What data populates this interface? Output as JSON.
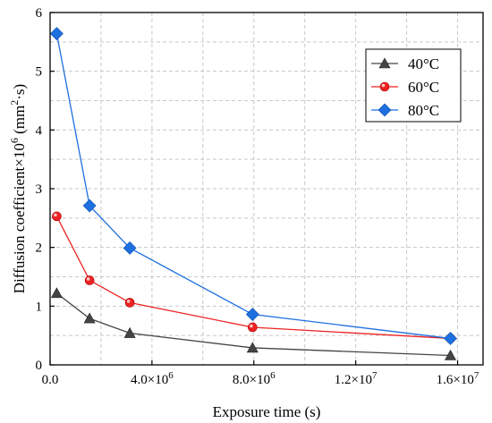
{
  "chart_data": {
    "type": "line",
    "xlabel": "Exposure time (s)",
    "ylabel": "Diffusion coefficient×10^6 (mm^2·s)",
    "xlim": [
      0,
      17000000
    ],
    "ylim": [
      0,
      6
    ],
    "x_ticks": [
      {
        "value": 0,
        "label": "0.0"
      },
      {
        "value": 4000000,
        "mantissa": "4.0×10",
        "exp": "6"
      },
      {
        "value": 8000000,
        "mantissa": "8.0×10",
        "exp": "6"
      },
      {
        "value": 12000000,
        "mantissa": "1.2×10",
        "exp": "7"
      },
      {
        "value": 16000000,
        "mantissa": "1.6×10",
        "exp": "7"
      }
    ],
    "y_ticks": [
      0,
      1,
      2,
      3,
      4,
      5,
      6
    ],
    "grid": true,
    "legend_position": "top-right",
    "x": [
      260000,
      1550000,
      3130000,
      7950000,
      15720000
    ],
    "series": [
      {
        "name": "40°C",
        "color": "#444444",
        "marker": "triangle",
        "values": [
          1.22,
          0.79,
          0.54,
          0.29,
          0.16
        ]
      },
      {
        "name": "60°C",
        "color": "#ee2222",
        "marker": "circle",
        "values": [
          2.53,
          1.44,
          1.06,
          0.64,
          0.45
        ]
      },
      {
        "name": "80°C",
        "color": "#1e6fe0",
        "marker": "diamond",
        "values": [
          5.64,
          2.71,
          1.99,
          0.86,
          0.45
        ]
      }
    ]
  },
  "ylabel_parts": {
    "main": "Diffusion coefficient×10",
    "sup1": "6",
    "mid": " (mm",
    "sup2": "2",
    "end": "·s)"
  }
}
